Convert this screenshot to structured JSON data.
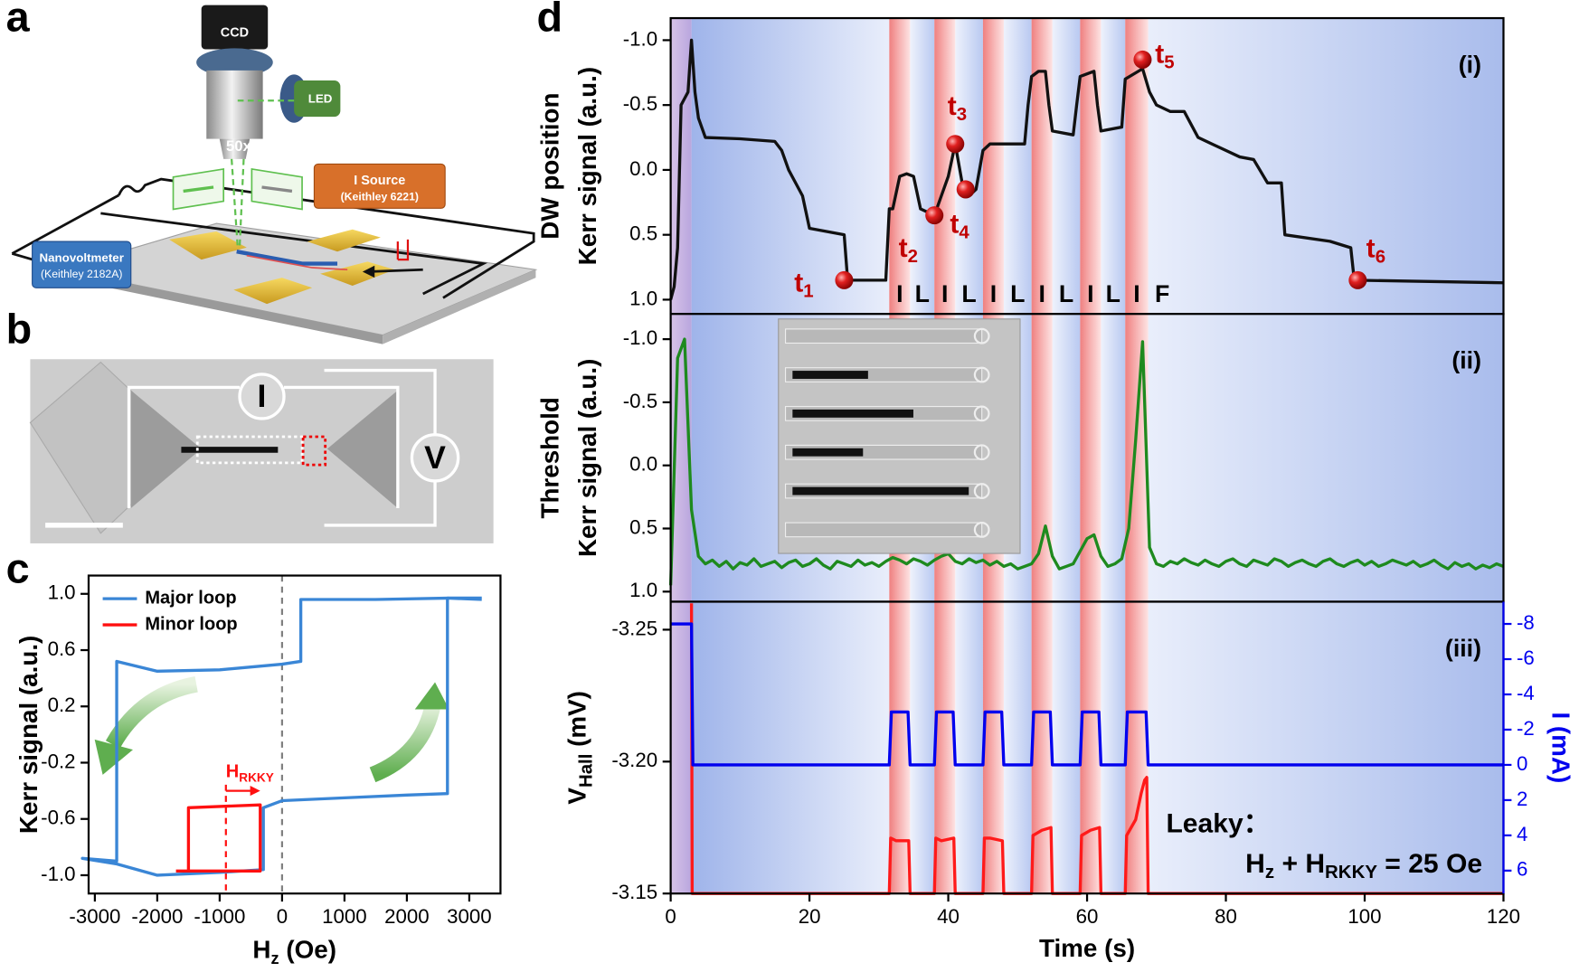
{
  "panel_letters": [
    "a",
    "b",
    "c",
    "d"
  ],
  "schematic": {
    "ccd": "CCD",
    "led": "LED",
    "objective": "50x",
    "source": [
      "I Source",
      "(Keithley 6221)"
    ],
    "voltmeter": [
      "Nanovoltmeter",
      "(Keithley 2182A)"
    ]
  },
  "sem": {
    "current": "I",
    "voltage": "V"
  },
  "chart_data": [
    {
      "type": "line",
      "ylabel": "Kerr signal (a.u.)",
      "xlabel": [
        "H",
        "z",
        " (Oe)"
      ],
      "xlim": [
        -3100,
        3500
      ],
      "ylim": [
        -1.13,
        1.13
      ],
      "xticks": [
        -3000,
        -2000,
        -1000,
        0,
        1000,
        2000,
        3000
      ],
      "yticks": [
        {
          "value": 1.0,
          "label": "1.0"
        },
        0.6,
        0.2,
        -0.2,
        -0.6,
        {
          "value": -1.0,
          "label": "-1.0"
        }
      ],
      "legend": "upper left",
      "series": [
        {
          "name": "Major loop",
          "color": "#3a86d6",
          "x": [
            3200,
            2700,
            1500,
            300,
            300,
            0,
            -1000,
            -2000,
            -2650,
            -2650,
            -3200,
            -2650,
            -2000,
            -1000,
            -300,
            -300,
            0,
            1000,
            2000,
            2650,
            2650,
            3200
          ],
          "values": [
            0.97,
            0.97,
            0.96,
            0.96,
            0.52,
            0.5,
            0.46,
            0.45,
            0.52,
            -0.9,
            -0.88,
            -0.92,
            -1.0,
            -0.98,
            -0.96,
            -0.52,
            -0.47,
            -0.45,
            -0.43,
            -0.42,
            0.97,
            0.96
          ]
        },
        {
          "name": "Minor loop",
          "color": "#ff1010",
          "x": [
            -1700,
            -350,
            -350,
            -1500,
            -1500
          ],
          "values": [
            -0.97,
            -0.97,
            -0.5,
            -0.52,
            -0.97
          ]
        }
      ],
      "vlines": [
        {
          "x": 0,
          "color": "#808080"
        },
        {
          "x": -900,
          "color": "#ff1010"
        }
      ],
      "annotation": {
        "text": [
          "H",
          "RKKY"
        ],
        "x": [
          -900,
          -350
        ],
        "y": -0.4,
        "color": "#ff1010"
      }
    },
    {
      "type": "line",
      "ylabel": [
        "DW position",
        "Kerr signal (a.u.)"
      ],
      "panel_label": "(i)",
      "xlim": [
        0,
        120
      ],
      "ylim": [
        1.11,
        -1.17
      ],
      "yticks": [
        {
          "value": -1.0,
          "label": "-1.0"
        },
        -0.5,
        {
          "value": 0.0,
          "label": "0.0"
        },
        0.5,
        {
          "value": 1.0,
          "label": "1.0"
        }
      ],
      "series": [
        {
          "color": "#111111",
          "x": [
            0,
            0.5,
            1,
            1.5,
            2,
            2.5,
            3,
            3.5,
            4,
            5,
            10,
            15,
            16,
            17,
            18,
            19,
            20,
            25,
            25.5,
            31,
            31.5,
            32,
            33,
            34,
            35,
            36,
            38,
            39,
            40,
            41,
            42,
            43,
            44,
            45,
            46,
            48,
            51,
            51.5,
            52,
            53,
            54,
            54.5,
            55,
            58,
            58.5,
            59,
            61,
            61.5,
            62,
            65,
            65.5,
            68,
            69,
            70,
            72,
            74,
            76,
            78,
            80,
            82,
            84,
            86,
            88,
            88.5,
            95,
            98,
            98.5,
            120
          ],
          "values": [
            1.0,
            0.9,
            0.6,
            -0.5,
            -0.55,
            -0.6,
            -1.0,
            -0.6,
            -0.4,
            -0.25,
            -0.24,
            -0.22,
            -0.15,
            0.0,
            0.1,
            0.2,
            0.45,
            0.5,
            0.85,
            0.85,
            0.3,
            0.3,
            0.05,
            0.03,
            0.05,
            0.3,
            0.35,
            0.2,
            0.05,
            -0.2,
            0.1,
            0.2,
            0.15,
            -0.15,
            -0.2,
            -0.2,
            -0.2,
            -0.5,
            -0.72,
            -0.76,
            -0.76,
            -0.5,
            -0.3,
            -0.27,
            -0.5,
            -0.72,
            -0.76,
            -0.5,
            -0.3,
            -0.33,
            -0.7,
            -0.78,
            -0.6,
            -0.5,
            -0.45,
            -0.45,
            -0.25,
            -0.2,
            -0.15,
            -0.1,
            -0.08,
            0.1,
            0.1,
            0.5,
            0.55,
            0.6,
            0.85,
            0.87
          ]
        }
      ],
      "markers": {
        "x": [
          25,
          38,
          41,
          42.5,
          68,
          99
        ],
        "values": [
          0.85,
          0.35,
          -0.2,
          0.15,
          -0.85,
          0.85
        ],
        "label": "t",
        "subscripts": [
          "1",
          "2",
          "3",
          "4",
          "5",
          "6"
        ],
        "color": "#c00000"
      },
      "phase_labels": [
        "I",
        "L",
        "I",
        "L",
        "I",
        "L",
        "I",
        "L",
        "I",
        "L",
        "I",
        "F"
      ]
    },
    {
      "type": "line",
      "ylabel": [
        "Threshold",
        "Kerr signal (a.u.)"
      ],
      "panel_label": "(ii)",
      "xlim": [
        0,
        120
      ],
      "ylim": [
        1.08,
        -1.2
      ],
      "yticks": [
        {
          "value": -1.0,
          "label": "-1.0"
        },
        -0.5,
        {
          "value": 0.0,
          "label": "0.0"
        },
        0.5,
        {
          "value": 1.0,
          "label": "1.0"
        }
      ],
      "series": [
        {
          "color": "#1e8a1e",
          "x": [
            0,
            1,
            2,
            3,
            4,
            5,
            6,
            7,
            8,
            9,
            10,
            11,
            12,
            13,
            14,
            15,
            16,
            17,
            18,
            19,
            20,
            21,
            22,
            23,
            24,
            25,
            26,
            27,
            28,
            29,
            30,
            31,
            32,
            33,
            34,
            35,
            36,
            37,
            38,
            39,
            40,
            41,
            42,
            43,
            44,
            45,
            46,
            47,
            48,
            49,
            50,
            51,
            52,
            53,
            54,
            55,
            56,
            57,
            58,
            59,
            60,
            61,
            62,
            63,
            64,
            65,
            66,
            67,
            68,
            69,
            70,
            71,
            72,
            73,
            74,
            75,
            76,
            77,
            78,
            79,
            80,
            81,
            82,
            83,
            84,
            85,
            86,
            87,
            88,
            89,
            90,
            91,
            92,
            93,
            94,
            95,
            96,
            97,
            98,
            99,
            100,
            101,
            102,
            103,
            104,
            105,
            106,
            107,
            108,
            109,
            110,
            111,
            112,
            113,
            114,
            115,
            116,
            117,
            118,
            119,
            120
          ],
          "values": [
            0.95,
            -0.85,
            -1.0,
            0.35,
            0.72,
            0.78,
            0.75,
            0.8,
            0.76,
            0.82,
            0.77,
            0.79,
            0.74,
            0.8,
            0.78,
            0.76,
            0.81,
            0.77,
            0.75,
            0.8,
            0.78,
            0.74,
            0.79,
            0.82,
            0.76,
            0.78,
            0.8,
            0.75,
            0.79,
            0.77,
            0.8,
            0.76,
            0.73,
            0.75,
            0.78,
            0.74,
            0.76,
            0.79,
            0.75,
            0.72,
            0.7,
            0.76,
            0.78,
            0.74,
            0.77,
            0.75,
            0.79,
            0.76,
            0.8,
            0.78,
            0.82,
            0.8,
            0.78,
            0.7,
            0.48,
            0.72,
            0.82,
            0.8,
            0.78,
            0.68,
            0.58,
            0.55,
            0.72,
            0.8,
            0.78,
            0.74,
            0.5,
            -0.2,
            -0.98,
            0.65,
            0.78,
            0.8,
            0.76,
            0.78,
            0.74,
            0.77,
            0.79,
            0.75,
            0.78,
            0.8,
            0.76,
            0.74,
            0.78,
            0.8,
            0.75,
            0.77,
            0.79,
            0.74,
            0.76,
            0.8,
            0.77,
            0.75,
            0.78,
            0.8,
            0.76,
            0.74,
            0.78,
            0.8,
            0.77,
            0.75,
            0.79,
            0.76,
            0.8,
            0.78,
            0.75,
            0.77,
            0.79,
            0.76,
            0.8,
            0.78,
            0.75,
            0.79,
            0.82,
            0.77,
            0.8,
            0.78,
            0.82,
            0.79,
            0.81,
            0.78,
            0.8
          ]
        }
      ]
    },
    {
      "type": "line",
      "ylabel": [
        "V",
        "Hall",
        " (mV)"
      ],
      "y2label": "I (mA)",
      "xlabel": "Time (s)",
      "panel_label": "(iii)",
      "xlim": [
        0,
        120
      ],
      "xticks": [
        0,
        20,
        40,
        60,
        80,
        100,
        120
      ],
      "ylim": [
        -3.15,
        -3.2606
      ],
      "yticks": [
        -3.25,
        {
          "value": -3.2,
          "label": "-3.20"
        },
        -3.15
      ],
      "y2lim": [
        7.3,
        -9.26
      ],
      "y2ticks": [
        -8,
        -6,
        -4,
        -2,
        0,
        2,
        4,
        6
      ],
      "series": [
        {
          "color": "#ff1a1a",
          "x": [
            3,
            3.1,
            31.5,
            31.7,
            32.5,
            34.3,
            34.5,
            38,
            38.2,
            39,
            40.8,
            41,
            45,
            45.2,
            46,
            47.8,
            48,
            52,
            52.2,
            53.5,
            54.8,
            55,
            59,
            59.2,
            60.5,
            61.8,
            62,
            65.5,
            65.7,
            67,
            67.8,
            68.3,
            68.6,
            68.8,
            120
          ],
          "values": [
            -3.26,
            -3.15,
            -3.15,
            -3.171,
            -3.17,
            -3.17,
            -3.15,
            -3.15,
            -3.171,
            -3.17,
            -3.171,
            -3.15,
            -3.15,
            -3.171,
            -3.171,
            -3.17,
            -3.15,
            -3.15,
            -3.172,
            -3.174,
            -3.175,
            -3.15,
            -3.15,
            -3.172,
            -3.174,
            -3.175,
            -3.15,
            -3.15,
            -3.172,
            -3.178,
            -3.188,
            -3.193,
            -3.194,
            -3.15,
            -3.15
          ]
        },
        {
          "color": "#0000ee",
          "axis": "y2",
          "x": [
            0,
            3,
            3.2,
            31.5,
            31.8,
            34.2,
            34.5,
            38,
            38.3,
            40.7,
            41,
            45,
            45.3,
            47.7,
            48,
            52,
            52.3,
            54.7,
            55,
            59,
            59.3,
            61.7,
            62,
            65.5,
            65.8,
            68.5,
            68.8,
            120
          ],
          "values": [
            -8,
            -8,
            0,
            0,
            -3,
            -3,
            0,
            0,
            -3,
            -3,
            0,
            0,
            -3,
            -3,
            0,
            0,
            -3,
            -3,
            0,
            0,
            -3,
            -3,
            0,
            0,
            -3,
            -3,
            0,
            0
          ]
        }
      ],
      "current_pulses": [
        [
          31.5,
          34.5
        ],
        [
          38,
          41
        ],
        [
          45,
          48
        ],
        [
          52,
          55
        ],
        [
          59,
          62
        ],
        [
          65.5,
          68.8
        ]
      ],
      "field_interval": [
        0,
        3
      ],
      "annotation": {
        "title": "Leaky：",
        "formula": [
          "H",
          "z",
          " + H",
          "RKKY",
          " = 25 Oe"
        ]
      }
    }
  ]
}
